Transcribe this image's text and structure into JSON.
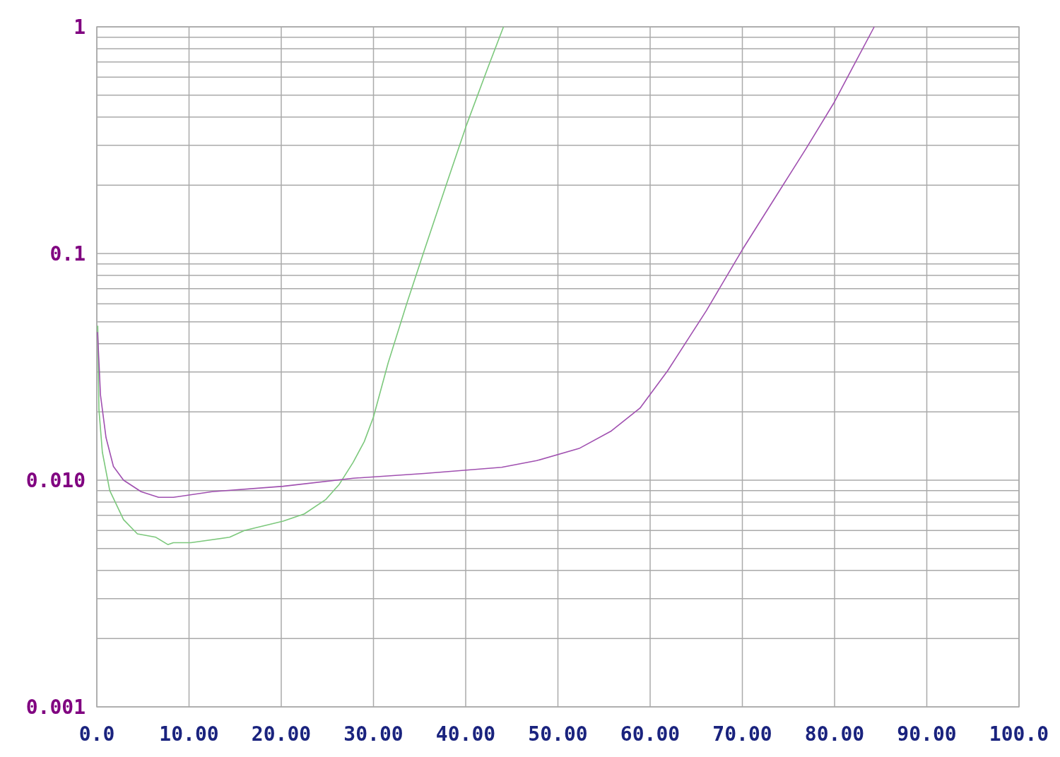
{
  "chart_data": {
    "type": "line",
    "log": "y",
    "grid": true,
    "line_style": "solid",
    "marker": "none",
    "xlim": [
      0,
      100
    ],
    "ylim": [
      0.001,
      1
    ],
    "xticks": [
      {
        "value": 0,
        "label": "0.0"
      },
      {
        "value": 10,
        "label": "10.00"
      },
      {
        "value": 20,
        "label": "20.00"
      },
      {
        "value": 30,
        "label": "30.00"
      },
      {
        "value": 40,
        "label": "40.00"
      },
      {
        "value": 50,
        "label": "50.00"
      },
      {
        "value": 60,
        "label": "60.00"
      },
      {
        "value": 70,
        "label": "70.00"
      },
      {
        "value": 80,
        "label": "80.00"
      },
      {
        "value": 90,
        "label": "90.00"
      },
      {
        "value": 100,
        "label": "100.0"
      }
    ],
    "yticks": [
      {
        "value": 0.001,
        "label": "0.001"
      },
      {
        "value": 0.002,
        "label": null
      },
      {
        "value": 0.003,
        "label": null
      },
      {
        "value": 0.004,
        "label": null
      },
      {
        "value": 0.005,
        "label": null
      },
      {
        "value": 0.006,
        "label": null
      },
      {
        "value": 0.007,
        "label": null
      },
      {
        "value": 0.008,
        "label": null
      },
      {
        "value": 0.009,
        "label": null
      },
      {
        "value": 0.01,
        "label": "0.010"
      },
      {
        "value": 0.02,
        "label": null
      },
      {
        "value": 0.03,
        "label": null
      },
      {
        "value": 0.04,
        "label": null
      },
      {
        "value": 0.05,
        "label": null
      },
      {
        "value": 0.06,
        "label": null
      },
      {
        "value": 0.07,
        "label": null
      },
      {
        "value": 0.08,
        "label": null
      },
      {
        "value": 0.09,
        "label": null
      },
      {
        "value": 0.1,
        "label": "0.1"
      },
      {
        "value": 0.2,
        "label": null
      },
      {
        "value": 0.3,
        "label": null
      },
      {
        "value": 0.4,
        "label": null
      },
      {
        "value": 0.5,
        "label": null
      },
      {
        "value": 0.6,
        "label": null
      },
      {
        "value": 0.7,
        "label": null
      },
      {
        "value": 0.8,
        "label": null
      },
      {
        "value": 0.9,
        "label": null
      },
      {
        "value": 1,
        "label": "1"
      }
    ],
    "series": [
      {
        "color": "#7cc87c",
        "x": [
          0.1,
          0.23,
          0.6,
          1.4,
          2.9,
          4.4,
          6.4,
          7.7,
          8.3,
          10.2,
          14.4,
          16,
          20.2,
          22.5,
          24.8,
          26.3,
          27.8,
          29,
          30,
          31.6,
          33.6,
          35.5,
          37.8,
          40.1,
          42.4,
          44.1
        ],
        "values": [
          0.048,
          0.0205,
          0.0133,
          0.009,
          0.0067,
          0.0058,
          0.0056,
          0.0052,
          0.0053,
          0.0053,
          0.0056,
          0.006,
          0.0066,
          0.0071,
          0.0082,
          0.0096,
          0.012,
          0.0148,
          0.019,
          0.033,
          0.06,
          0.103,
          0.196,
          0.37,
          0.66,
          1
        ]
      },
      {
        "color": "#a050b0",
        "x": [
          0.08,
          0.4,
          1,
          1.8,
          2.9,
          4.8,
          6.7,
          8.3,
          12.5,
          20.2,
          27.8,
          35.5,
          43.9,
          47.7,
          52.3,
          55.8,
          58.9,
          61.9,
          66.1,
          70,
          73.8,
          76.9,
          79.9,
          82.2,
          84.3
        ],
        "values": [
          0.045,
          0.0237,
          0.0154,
          0.0115,
          0.01,
          0.0089,
          0.0084,
          0.0084,
          0.0089,
          0.0094,
          0.0102,
          0.0107,
          0.0114,
          0.0122,
          0.0138,
          0.0165,
          0.0208,
          0.0304,
          0.056,
          0.104,
          0.183,
          0.29,
          0.46,
          0.69,
          1
        ]
      }
    ]
  }
}
